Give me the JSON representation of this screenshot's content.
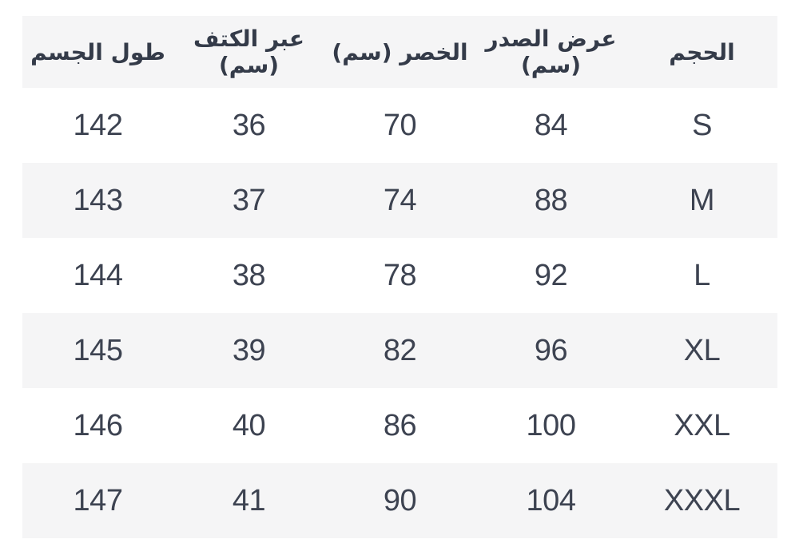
{
  "page": {
    "background_color": "#ffffff"
  },
  "table": {
    "name": "size-chart",
    "direction": "rtl",
    "stripe_color": "#f5f5f6",
    "header_text_color": "#343b49",
    "cell_text_color": "#3d4351",
    "columns": [
      {
        "id": "size",
        "label": "الحجم"
      },
      {
        "id": "chest",
        "label": "عرض الصدر (سم)"
      },
      {
        "id": "waist",
        "label": "الخصر (سم)"
      },
      {
        "id": "shoulder",
        "label": "عبر الكتف (سم)"
      },
      {
        "id": "length",
        "label": "طول الجسم"
      }
    ],
    "rows": [
      {
        "size": "S",
        "chest": "84",
        "waist": "70",
        "shoulder": "36",
        "length": "142"
      },
      {
        "size": "M",
        "chest": "88",
        "waist": "74",
        "shoulder": "37",
        "length": "143"
      },
      {
        "size": "L",
        "chest": "92",
        "waist": "78",
        "shoulder": "38",
        "length": "144"
      },
      {
        "size": "XL",
        "chest": "96",
        "waist": "82",
        "shoulder": "39",
        "length": "145"
      },
      {
        "size": "XXL",
        "chest": "100",
        "waist": "86",
        "shoulder": "40",
        "length": "146"
      },
      {
        "size": "XXXL",
        "chest": "104",
        "waist": "90",
        "shoulder": "41",
        "length": "147"
      }
    ]
  }
}
